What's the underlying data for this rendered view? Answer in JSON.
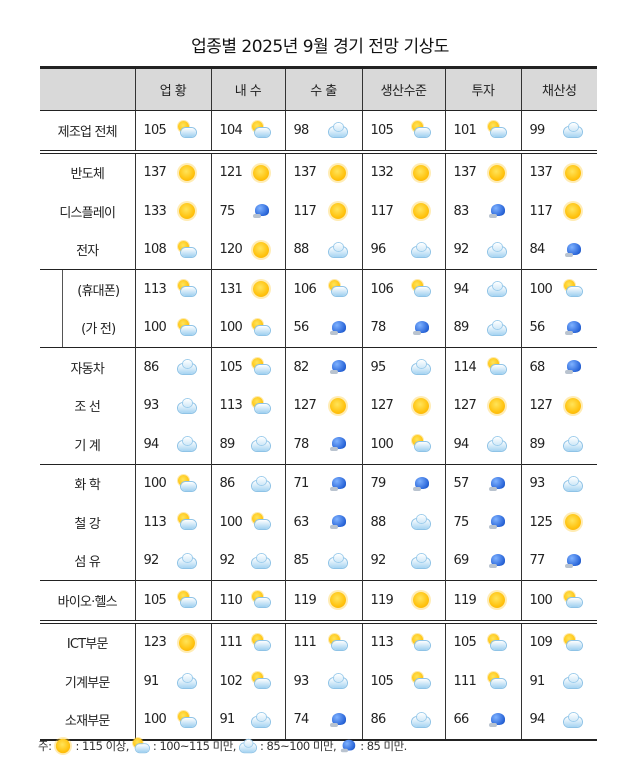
{
  "title": "업종별 2025년 9월 경기 전망 기상도",
  "columns": [
    "업 황",
    "내 수",
    "수 출",
    "생산수준",
    "투자",
    "채산성"
  ],
  "icon_legend": {
    "sun": "sun-icon (115 이상)",
    "pcloud": "sun-behind-cloud-icon (100~115 미만)",
    "cloud": "cloud-icon (85~100 미만)",
    "rain": "rain-cloud-icon (85 미만)"
  },
  "rows": [
    {
      "label": "제조업 전체",
      "values": [
        105,
        104,
        98,
        105,
        101,
        99
      ],
      "icons": [
        "pcloud",
        "pcloud",
        "cloud",
        "pcloud",
        "pcloud",
        "cloud"
      ]
    },
    {
      "label": "반도체",
      "values": [
        137,
        121,
        137,
        132,
        137,
        137
      ],
      "icons": [
        "sun",
        "sun",
        "sun",
        "sun",
        "sun",
        "sun"
      ]
    },
    {
      "label": "디스플레이",
      "values": [
        133,
        75,
        117,
        117,
        83,
        117
      ],
      "icons": [
        "sun",
        "rain",
        "sun",
        "sun",
        "rain",
        "sun"
      ]
    },
    {
      "label": "전자",
      "values": [
        108,
        120,
        88,
        96,
        92,
        84
      ],
      "icons": [
        "pcloud",
        "sun",
        "cloud",
        "cloud",
        "cloud",
        "rain"
      ]
    },
    {
      "label": "(휴대폰)",
      "values": [
        113,
        131,
        106,
        106,
        94,
        100
      ],
      "icons": [
        "pcloud",
        "sun",
        "pcloud",
        "pcloud",
        "cloud",
        "pcloud"
      ]
    },
    {
      "label": "(가 전)",
      "values": [
        100,
        100,
        56,
        78,
        89,
        56
      ],
      "icons": [
        "pcloud",
        "pcloud",
        "rain",
        "rain",
        "cloud",
        "rain"
      ]
    },
    {
      "label": "자동차",
      "values": [
        86,
        105,
        82,
        95,
        114,
        68
      ],
      "icons": [
        "cloud",
        "pcloud",
        "rain",
        "cloud",
        "pcloud",
        "rain"
      ]
    },
    {
      "label": "조 선",
      "values": [
        93,
        113,
        127,
        127,
        127,
        127
      ],
      "icons": [
        "cloud",
        "pcloud",
        "sun",
        "sun",
        "sun",
        "sun"
      ]
    },
    {
      "label": "기 계",
      "values": [
        94,
        89,
        78,
        100,
        94,
        89
      ],
      "icons": [
        "cloud",
        "cloud",
        "rain",
        "pcloud",
        "cloud",
        "cloud"
      ]
    },
    {
      "label": "화 학",
      "values": [
        100,
        86,
        71,
        79,
        57,
        93
      ],
      "icons": [
        "pcloud",
        "cloud",
        "rain",
        "rain",
        "rain",
        "cloud"
      ]
    },
    {
      "label": "철 강",
      "values": [
        113,
        100,
        63,
        88,
        75,
        125
      ],
      "icons": [
        "pcloud",
        "pcloud",
        "rain",
        "cloud",
        "rain",
        "sun"
      ]
    },
    {
      "label": "섬 유",
      "values": [
        92,
        92,
        85,
        92,
        69,
        77
      ],
      "icons": [
        "cloud",
        "cloud",
        "cloud",
        "cloud",
        "rain",
        "rain"
      ]
    },
    {
      "label": "바이오·헬스",
      "values": [
        105,
        110,
        119,
        119,
        119,
        100
      ],
      "icons": [
        "pcloud",
        "pcloud",
        "sun",
        "sun",
        "sun",
        "pcloud"
      ]
    },
    {
      "label": "ICT부문",
      "values": [
        123,
        111,
        111,
        113,
        105,
        109
      ],
      "icons": [
        "sun",
        "pcloud",
        "pcloud",
        "pcloud",
        "pcloud",
        "pcloud"
      ]
    },
    {
      "label": "기계부문",
      "values": [
        91,
        102,
        93,
        105,
        111,
        91
      ],
      "icons": [
        "cloud",
        "pcloud",
        "cloud",
        "pcloud",
        "pcloud",
        "cloud"
      ]
    },
    {
      "label": "소재부문",
      "values": [
        100,
        91,
        74,
        86,
        66,
        94
      ],
      "icons": [
        "pcloud",
        "cloud",
        "rain",
        "cloud",
        "rain",
        "cloud"
      ]
    }
  ],
  "note": {
    "prefix": "주:",
    "sun": ": 115 이상,",
    "pcloud": ": 100~115 미만,",
    "cloud": ": 85~100 미만,",
    "rain": ": 85 미만."
  }
}
